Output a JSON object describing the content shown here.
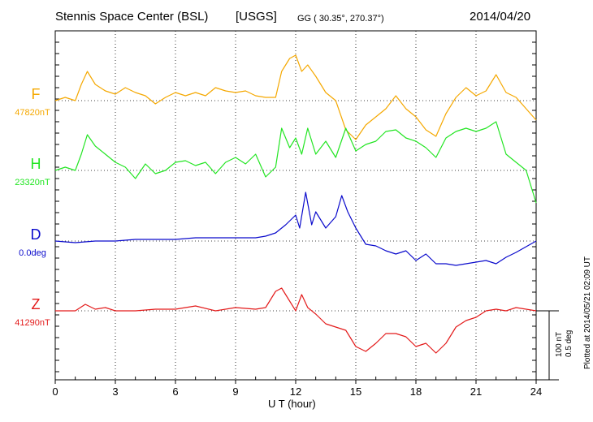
{
  "header": {
    "station": "Stennis Space Center (BSL)",
    "source": "[USGS]",
    "coords": "GG ( 30.35°, 270.37°)",
    "date": "2014/04/20"
  },
  "footer": {
    "plotted": "Plotted at 2014/05/21 02:09 UT",
    "scale_nt": "100 nT",
    "scale_deg": "0.5 deg"
  },
  "chart_data": {
    "type": "line",
    "xlabel": "U T (hour)",
    "xlim": [
      0,
      24
    ],
    "xticks": [
      0,
      3,
      6,
      9,
      12,
      15,
      18,
      21,
      24
    ],
    "grid": true,
    "series": [
      {
        "name": "F",
        "baseline_label": "47820nT",
        "color": "#f5a800",
        "x": [
          0,
          0.5,
          1,
          1.3,
          1.6,
          2,
          2.5,
          3,
          3.5,
          4,
          4.5,
          5,
          5.5,
          6,
          6.5,
          7,
          7.5,
          8,
          8.5,
          9,
          9.5,
          10,
          10.5,
          11,
          11.3,
          11.7,
          12,
          12.3,
          12.6,
          13,
          13.5,
          14,
          14.5,
          15,
          15.5,
          16,
          16.5,
          17,
          17.5,
          18,
          18.5,
          19,
          19.5,
          20,
          20.5,
          21,
          21.5,
          22,
          22.5,
          23,
          23.5,
          24
        ],
        "y": [
          0,
          2,
          0,
          10,
          18,
          10,
          6,
          4,
          8,
          5,
          3,
          -2,
          2,
          5,
          3,
          5,
          3,
          8,
          6,
          5,
          6,
          3,
          2,
          2,
          18,
          26,
          28,
          18,
          22,
          15,
          5,
          0,
          -18,
          -24,
          -15,
          -10,
          -5,
          3,
          -5,
          -10,
          -18,
          -22,
          -8,
          2,
          8,
          3,
          6,
          16,
          5,
          2,
          -5,
          -12
        ]
      },
      {
        "name": "H",
        "baseline_label": "23320nT",
        "color": "#22e522",
        "x": [
          0,
          0.5,
          1,
          1.3,
          1.6,
          2,
          2.5,
          3,
          3.5,
          4,
          4.5,
          5,
          5.5,
          6,
          6.5,
          7,
          7.5,
          8,
          8.5,
          9,
          9.5,
          10,
          10.5,
          11,
          11.3,
          11.7,
          12,
          12.3,
          12.6,
          13,
          13.5,
          14,
          14.5,
          15,
          15.5,
          16,
          16.5,
          17,
          17.5,
          18,
          18.5,
          19,
          19.5,
          20,
          20.5,
          21,
          21.5,
          22,
          22.5,
          23,
          23.5,
          24
        ],
        "y": [
          0,
          2,
          0,
          10,
          22,
          15,
          10,
          5,
          2,
          -5,
          4,
          -2,
          0,
          5,
          6,
          3,
          5,
          -2,
          5,
          8,
          4,
          10,
          -4,
          2,
          26,
          14,
          20,
          10,
          26,
          10,
          18,
          8,
          26,
          12,
          16,
          18,
          24,
          25,
          20,
          18,
          14,
          8,
          20,
          24,
          26,
          24,
          26,
          30,
          10,
          5,
          0,
          -20
        ]
      },
      {
        "name": "D",
        "baseline_label": "0.0deg",
        "color": "#0a0acc",
        "x": [
          0,
          1,
          2,
          3,
          4,
          5,
          6,
          7,
          8,
          9,
          10,
          10.5,
          11,
          11.5,
          12,
          12.2,
          12.5,
          12.8,
          13,
          13.5,
          14,
          14.3,
          14.6,
          15,
          15.5,
          16,
          16.5,
          17,
          17.5,
          18,
          18.5,
          19,
          19.5,
          20,
          21,
          21.5,
          22,
          22.5,
          23,
          24
        ],
        "y": [
          0,
          -1,
          0,
          0,
          1,
          1,
          1,
          2,
          2,
          2,
          2,
          3,
          5,
          10,
          16,
          8,
          30,
          10,
          18,
          8,
          15,
          28,
          18,
          8,
          -2,
          -3,
          -6,
          -8,
          -6,
          -12,
          -8,
          -14,
          -14,
          -15,
          -13,
          -12,
          -14,
          -10,
          -7,
          0
        ]
      },
      {
        "name": "Z",
        "baseline_label": "41290nT",
        "color": "#e31a1a",
        "x": [
          0,
          1,
          1.5,
          2,
          2.5,
          3,
          4,
          5,
          6,
          7,
          8,
          9,
          10,
          10.5,
          11,
          11.3,
          11.6,
          12,
          12.3,
          12.6,
          13,
          13.5,
          14,
          14.5,
          15,
          15.5,
          16,
          16.5,
          17,
          17.5,
          18,
          18.5,
          19,
          19.5,
          20,
          20.5,
          21,
          21.5,
          22,
          22.5,
          23,
          24
        ],
        "y": [
          0,
          0,
          4,
          1,
          2,
          0,
          0,
          1,
          1,
          3,
          0,
          2,
          1,
          2,
          12,
          14,
          8,
          0,
          10,
          2,
          -2,
          -8,
          -10,
          -12,
          -22,
          -25,
          -20,
          -14,
          -14,
          -16,
          -22,
          -20,
          -26,
          -20,
          -10,
          -6,
          -4,
          0,
          1,
          0,
          2,
          0
        ]
      }
    ]
  }
}
